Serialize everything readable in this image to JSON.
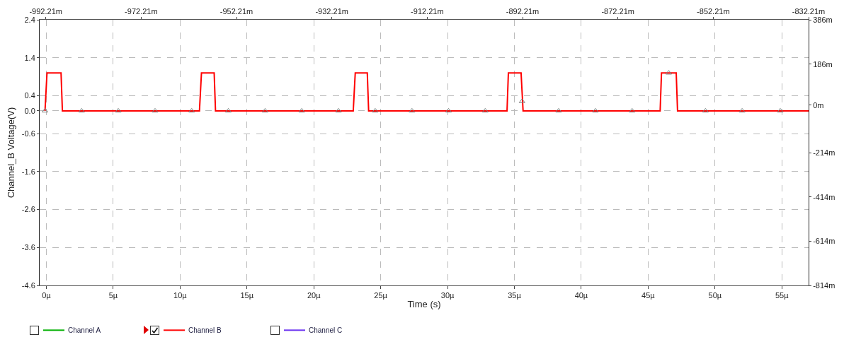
{
  "chart_data": {
    "type": "line",
    "xlabel": "Time (s)",
    "ylabel": "Channel_B Voltage(V)",
    "xlim": [
      -0.5,
      57
    ],
    "xticks": [
      {
        "value": 0,
        "label": "0µ"
      },
      {
        "value": 5,
        "label": "5µ"
      },
      {
        "value": 10,
        "label": "10µ"
      },
      {
        "value": 15,
        "label": "15µ"
      },
      {
        "value": 20,
        "label": "20µ"
      },
      {
        "value": 25,
        "label": "25µ"
      },
      {
        "value": 30,
        "label": "30µ"
      },
      {
        "value": 35,
        "label": "35µ"
      },
      {
        "value": 40,
        "label": "40µ"
      },
      {
        "value": 45,
        "label": "45µ"
      },
      {
        "value": 50,
        "label": "50µ"
      },
      {
        "value": 55,
        "label": "55µ"
      }
    ],
    "ylim": [
      -4.6,
      2.4
    ],
    "yticks": [
      -4.6,
      -3.6,
      -2.6,
      -1.6,
      -0.6,
      {
        "value": 0,
        "label": "0.0"
      },
      0.4,
      1.4,
      2.4
    ],
    "y2lim": [
      -814,
      386
    ],
    "y2ticks": [
      {
        "value": -814,
        "label": "-814m"
      },
      {
        "value": -614,
        "label": "-614m"
      },
      {
        "value": -414,
        "label": "-414m"
      },
      {
        "value": -214,
        "label": "-214m"
      },
      {
        "value": 0,
        "label": "0m"
      },
      {
        "value": 186,
        "label": "186m"
      },
      {
        "value": 386,
        "label": "386m"
      }
    ],
    "x2lim": [
      -993.5,
      -832.21
    ],
    "x2ticks": [
      {
        "value": -992.21,
        "label": "-992.21m"
      },
      {
        "value": -972.21,
        "label": "-972.21m"
      },
      {
        "value": -952.21,
        "label": "-952.21m"
      },
      {
        "value": -932.21,
        "label": "-932.21m"
      },
      {
        "value": -912.21,
        "label": "-912.21m"
      },
      {
        "value": -892.21,
        "label": "-892.21m"
      },
      {
        "value": -872.21,
        "label": "-872.21m"
      },
      {
        "value": -852.21,
        "label": "-852.21m"
      },
      {
        "value": -832.21,
        "label": "-832.21m"
      }
    ],
    "grid": true,
    "legend": "bottom left",
    "line_style": "solid",
    "marker": "none",
    "series": [
      {
        "name": "Channel A",
        "color": "#00b000"
      },
      {
        "name": "Channel B",
        "color": "#ff0000",
        "x": [
          -0.1,
          0.05,
          1.1,
          1.2,
          11.45,
          11.6,
          12.55,
          12.65,
          22.95,
          23.1,
          24.0,
          24.1,
          34.45,
          34.55,
          35.5,
          35.65,
          45.9,
          46.0,
          47.1,
          47.2,
          57
        ],
        "values": [
          0,
          1.0,
          1.0,
          0,
          0,
          1.0,
          1.0,
          0,
          0,
          1.0,
          1.0,
          0,
          0,
          1.0,
          1.0,
          0,
          0,
          1.0,
          1.0,
          0,
          0
        ]
      },
      {
        "name": "Channel C",
        "color": "#6a30f0"
      },
      {
        "type": "scatter",
        "marker": "triangle",
        "color": "#808080",
        "x": [
          -0.1,
          2.64,
          5.38,
          8.13,
          10.87,
          13.61,
          16.36,
          19.1,
          21.85,
          24.59,
          27.34,
          30.08,
          32.82,
          35.57,
          38.31,
          41.06,
          43.8,
          46.54,
          49.29,
          52.03,
          54.88
        ],
        "values": [
          0,
          0,
          0,
          0,
          0,
          0,
          0,
          0,
          0,
          0,
          0,
          0,
          0,
          0.25,
          0,
          0,
          0,
          1.0,
          0,
          0,
          0
        ]
      }
    ]
  }
}
